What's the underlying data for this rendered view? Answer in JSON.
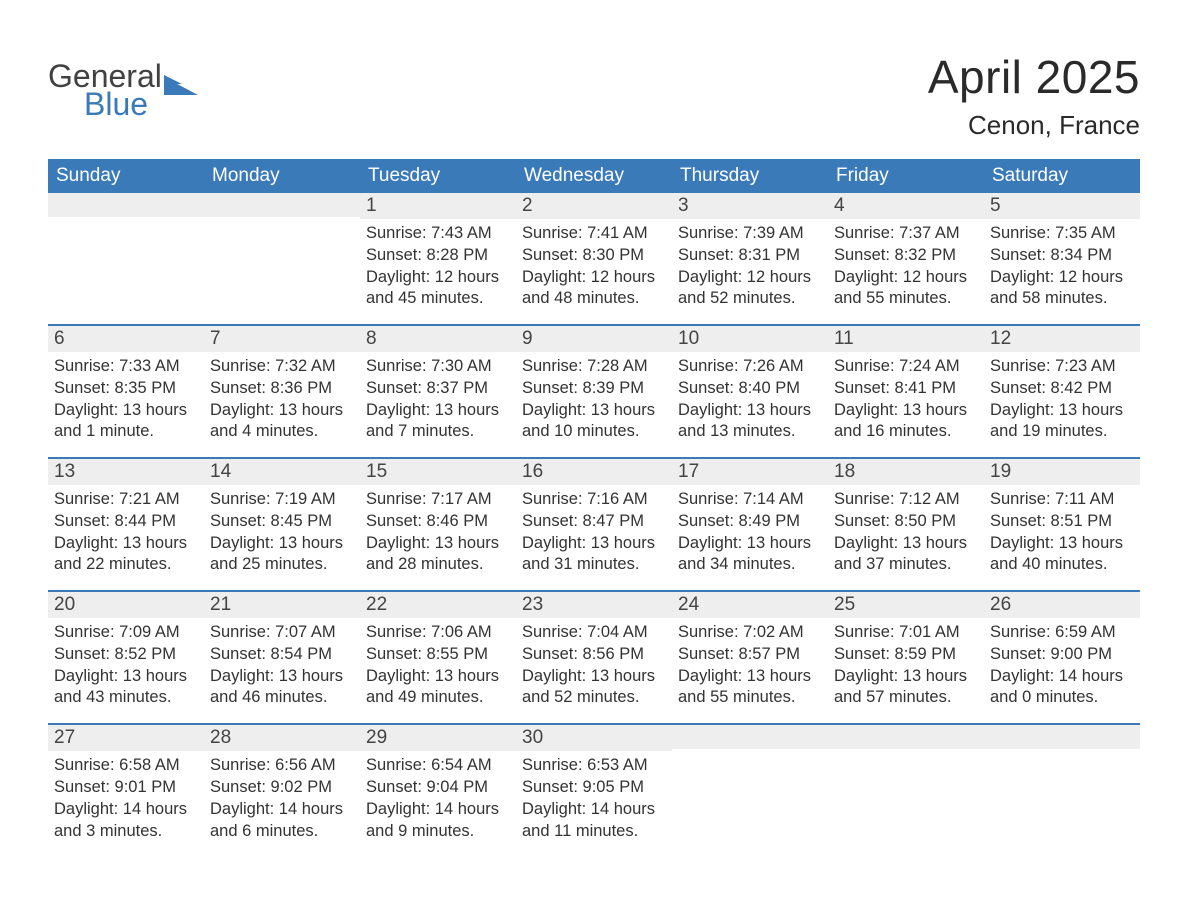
{
  "brand": {
    "word1": "General",
    "word2": "Blue",
    "flag_color": "#3a7ab8"
  },
  "title": "April 2025",
  "location": "Cenon, France",
  "colors": {
    "header_bg": "#3a7ab8",
    "header_text": "#ffffff",
    "daynum_bg": "#eeeeee",
    "week_border": "#3a7ab8",
    "body_text": "#333333",
    "page_bg": "#ffffff"
  },
  "fonts": {
    "title_size_pt": 34,
    "location_size_pt": 20,
    "weekday_size_pt": 14,
    "daynum_size_pt": 14,
    "body_size_pt": 12
  },
  "weekdays": [
    "Sunday",
    "Monday",
    "Tuesday",
    "Wednesday",
    "Thursday",
    "Friday",
    "Saturday"
  ],
  "weeks": [
    [
      {
        "n": "",
        "sunrise": "",
        "sunset": "",
        "daylight": ""
      },
      {
        "n": "",
        "sunrise": "",
        "sunset": "",
        "daylight": ""
      },
      {
        "n": "1",
        "sunrise": "Sunrise: 7:43 AM",
        "sunset": "Sunset: 8:28 PM",
        "daylight": "Daylight: 12 hours and 45 minutes."
      },
      {
        "n": "2",
        "sunrise": "Sunrise: 7:41 AM",
        "sunset": "Sunset: 8:30 PM",
        "daylight": "Daylight: 12 hours and 48 minutes."
      },
      {
        "n": "3",
        "sunrise": "Sunrise: 7:39 AM",
        "sunset": "Sunset: 8:31 PM",
        "daylight": "Daylight: 12 hours and 52 minutes."
      },
      {
        "n": "4",
        "sunrise": "Sunrise: 7:37 AM",
        "sunset": "Sunset: 8:32 PM",
        "daylight": "Daylight: 12 hours and 55 minutes."
      },
      {
        "n": "5",
        "sunrise": "Sunrise: 7:35 AM",
        "sunset": "Sunset: 8:34 PM",
        "daylight": "Daylight: 12 hours and 58 minutes."
      }
    ],
    [
      {
        "n": "6",
        "sunrise": "Sunrise: 7:33 AM",
        "sunset": "Sunset: 8:35 PM",
        "daylight": "Daylight: 13 hours and 1 minute."
      },
      {
        "n": "7",
        "sunrise": "Sunrise: 7:32 AM",
        "sunset": "Sunset: 8:36 PM",
        "daylight": "Daylight: 13 hours and 4 minutes."
      },
      {
        "n": "8",
        "sunrise": "Sunrise: 7:30 AM",
        "sunset": "Sunset: 8:37 PM",
        "daylight": "Daylight: 13 hours and 7 minutes."
      },
      {
        "n": "9",
        "sunrise": "Sunrise: 7:28 AM",
        "sunset": "Sunset: 8:39 PM",
        "daylight": "Daylight: 13 hours and 10 minutes."
      },
      {
        "n": "10",
        "sunrise": "Sunrise: 7:26 AM",
        "sunset": "Sunset: 8:40 PM",
        "daylight": "Daylight: 13 hours and 13 minutes."
      },
      {
        "n": "11",
        "sunrise": "Sunrise: 7:24 AM",
        "sunset": "Sunset: 8:41 PM",
        "daylight": "Daylight: 13 hours and 16 minutes."
      },
      {
        "n": "12",
        "sunrise": "Sunrise: 7:23 AM",
        "sunset": "Sunset: 8:42 PM",
        "daylight": "Daylight: 13 hours and 19 minutes."
      }
    ],
    [
      {
        "n": "13",
        "sunrise": "Sunrise: 7:21 AM",
        "sunset": "Sunset: 8:44 PM",
        "daylight": "Daylight: 13 hours and 22 minutes."
      },
      {
        "n": "14",
        "sunrise": "Sunrise: 7:19 AM",
        "sunset": "Sunset: 8:45 PM",
        "daylight": "Daylight: 13 hours and 25 minutes."
      },
      {
        "n": "15",
        "sunrise": "Sunrise: 7:17 AM",
        "sunset": "Sunset: 8:46 PM",
        "daylight": "Daylight: 13 hours and 28 minutes."
      },
      {
        "n": "16",
        "sunrise": "Sunrise: 7:16 AM",
        "sunset": "Sunset: 8:47 PM",
        "daylight": "Daylight: 13 hours and 31 minutes."
      },
      {
        "n": "17",
        "sunrise": "Sunrise: 7:14 AM",
        "sunset": "Sunset: 8:49 PM",
        "daylight": "Daylight: 13 hours and 34 minutes."
      },
      {
        "n": "18",
        "sunrise": "Sunrise: 7:12 AM",
        "sunset": "Sunset: 8:50 PM",
        "daylight": "Daylight: 13 hours and 37 minutes."
      },
      {
        "n": "19",
        "sunrise": "Sunrise: 7:11 AM",
        "sunset": "Sunset: 8:51 PM",
        "daylight": "Daylight: 13 hours and 40 minutes."
      }
    ],
    [
      {
        "n": "20",
        "sunrise": "Sunrise: 7:09 AM",
        "sunset": "Sunset: 8:52 PM",
        "daylight": "Daylight: 13 hours and 43 minutes."
      },
      {
        "n": "21",
        "sunrise": "Sunrise: 7:07 AM",
        "sunset": "Sunset: 8:54 PM",
        "daylight": "Daylight: 13 hours and 46 minutes."
      },
      {
        "n": "22",
        "sunrise": "Sunrise: 7:06 AM",
        "sunset": "Sunset: 8:55 PM",
        "daylight": "Daylight: 13 hours and 49 minutes."
      },
      {
        "n": "23",
        "sunrise": "Sunrise: 7:04 AM",
        "sunset": "Sunset: 8:56 PM",
        "daylight": "Daylight: 13 hours and 52 minutes."
      },
      {
        "n": "24",
        "sunrise": "Sunrise: 7:02 AM",
        "sunset": "Sunset: 8:57 PM",
        "daylight": "Daylight: 13 hours and 55 minutes."
      },
      {
        "n": "25",
        "sunrise": "Sunrise: 7:01 AM",
        "sunset": "Sunset: 8:59 PM",
        "daylight": "Daylight: 13 hours and 57 minutes."
      },
      {
        "n": "26",
        "sunrise": "Sunrise: 6:59 AM",
        "sunset": "Sunset: 9:00 PM",
        "daylight": "Daylight: 14 hours and 0 minutes."
      }
    ],
    [
      {
        "n": "27",
        "sunrise": "Sunrise: 6:58 AM",
        "sunset": "Sunset: 9:01 PM",
        "daylight": "Daylight: 14 hours and 3 minutes."
      },
      {
        "n": "28",
        "sunrise": "Sunrise: 6:56 AM",
        "sunset": "Sunset: 9:02 PM",
        "daylight": "Daylight: 14 hours and 6 minutes."
      },
      {
        "n": "29",
        "sunrise": "Sunrise: 6:54 AM",
        "sunset": "Sunset: 9:04 PM",
        "daylight": "Daylight: 14 hours and 9 minutes."
      },
      {
        "n": "30",
        "sunrise": "Sunrise: 6:53 AM",
        "sunset": "Sunset: 9:05 PM",
        "daylight": "Daylight: 14 hours and 11 minutes."
      },
      {
        "n": "",
        "sunrise": "",
        "sunset": "",
        "daylight": ""
      },
      {
        "n": "",
        "sunrise": "",
        "sunset": "",
        "daylight": ""
      },
      {
        "n": "",
        "sunrise": "",
        "sunset": "",
        "daylight": ""
      }
    ]
  ]
}
